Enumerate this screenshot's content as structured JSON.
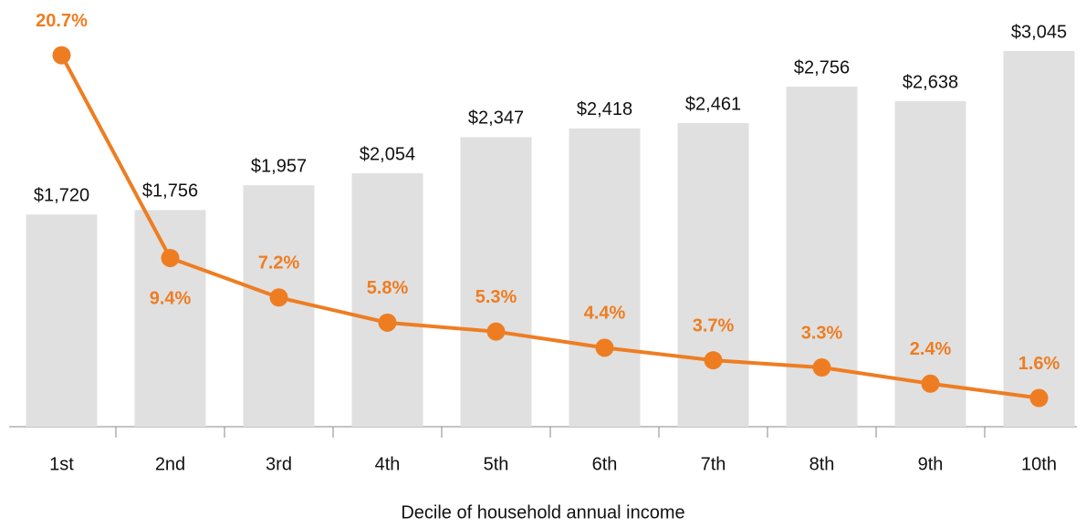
{
  "chart_data": {
    "type": "combo",
    "x_label": "Decile of household annual income",
    "categories": [
      "1st",
      "2nd",
      "3rd",
      "4th",
      "5th",
      "6th",
      "7th",
      "8th",
      "9th",
      "10th"
    ],
    "series": [
      {
        "type": "bar",
        "color": "#e0e0e0",
        "values": [
          1720,
          1756,
          1957,
          2054,
          2347,
          2418,
          2461,
          2756,
          2638,
          3045
        ],
        "value_labels": [
          "$1,720",
          "$1,756",
          "$1,957",
          "$2,054",
          "$2,347",
          "$2,418",
          "$2,461",
          "$2,756",
          "$2,638",
          "$3,045"
        ]
      },
      {
        "type": "line",
        "axis": "y2",
        "color": "#ee7d22",
        "values": [
          20.7,
          9.4,
          7.2,
          5.8,
          5.3,
          4.4,
          3.7,
          3.3,
          2.4,
          1.6
        ],
        "value_labels": [
          "20.7%",
          "9.4%",
          "7.2%",
          "5.8%",
          "5.3%",
          "4.4%",
          "3.7%",
          "3.3%",
          "2.4%",
          "1.6%"
        ]
      }
    ],
    "ylim": [
      0,
      3200
    ],
    "y2lim": [
      0,
      22
    ]
  }
}
